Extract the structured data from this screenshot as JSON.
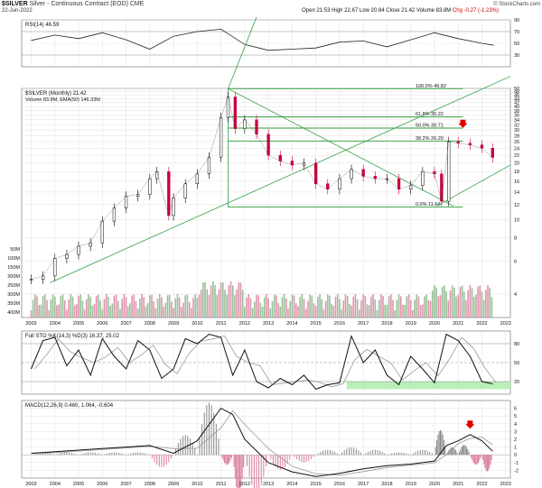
{
  "header": {
    "symbol": "$SILVER",
    "description": "Silver - Continuous Contract (EOD) CME",
    "date": "22-Jun-2022",
    "ohlc": {
      "open": "Open 21.53",
      "high": "High 22.67",
      "low": "Low 20.84",
      "close": "Close 21.42",
      "volume": "Volume 83.8M",
      "change": "Chg -0.27 (-1.23%)"
    },
    "copyright": "© StockCharts.com"
  },
  "colors": {
    "up": "#000000",
    "down": "#c8003c",
    "trend": "#2e9b3c",
    "volume": "#7fb07f",
    "vol_down": "#d87a9a",
    "grid": "#d9d9d9",
    "highlight": "#b8f0b8",
    "arrow": "#e00000"
  },
  "chart_data": [
    {
      "type": "line",
      "name": "rsi",
      "label": "RSI(14) 46.59",
      "x": [
        2003,
        2004,
        2005,
        2006,
        2007,
        2008,
        2009,
        2010,
        2011,
        2012,
        2013,
        2014,
        2015,
        2016,
        2017,
        2018,
        2019,
        2020,
        2021,
        2022,
        2022.5
      ],
      "values": [
        55,
        64,
        58,
        68,
        56,
        40,
        62,
        70,
        74,
        48,
        38,
        40,
        42,
        52,
        54,
        44,
        56,
        68,
        58,
        50,
        46.59
      ],
      "yticks": [
        30,
        50,
        70,
        90
      ],
      "ylim": [
        10,
        90
      ]
    },
    {
      "type": "candlestick",
      "name": "price",
      "label": "$SILVER (Monthly) 21.42",
      "sublabel": "Volume 83.8M, EMA(50) 146.33M",
      "x": [
        2003,
        2003.5,
        2004,
        2004.5,
        2005,
        2005.5,
        2006,
        2006.5,
        2007,
        2007.5,
        2008,
        2008.3,
        2008.8,
        2009,
        2009.5,
        2010,
        2010.5,
        2011,
        2011.3,
        2011.6,
        2012,
        2012.5,
        2013,
        2013.5,
        2014,
        2014.5,
        2015,
        2015.5,
        2016,
        2016.5,
        2017,
        2017.5,
        2018,
        2018.5,
        2019,
        2019.5,
        2020,
        2020.3,
        2020.6,
        2021,
        2021.5,
        2022,
        2022.45
      ],
      "close": [
        4.8,
        5.0,
        6.2,
        6.5,
        7.2,
        7.5,
        9.8,
        11.5,
        13.3,
        13.6,
        16.5,
        18.0,
        10.5,
        13.0,
        15.5,
        17.5,
        21.5,
        35.0,
        45.0,
        30.5,
        34.0,
        28.5,
        22.0,
        20.5,
        19.5,
        20.0,
        15.5,
        14.5,
        16.5,
        18.5,
        17.0,
        16.5,
        16.5,
        14.5,
        15.2,
        18.0,
        17.5,
        12.5,
        26.0,
        25.5,
        25.0,
        24.0,
        21.42
      ],
      "yticks": [
        4,
        6,
        8,
        10,
        12,
        14,
        16,
        18,
        20,
        22,
        24,
        26,
        28,
        30,
        32,
        34,
        36,
        38,
        40,
        42,
        44,
        46,
        48,
        50
      ],
      "ylim": [
        3,
        50
      ],
      "volume_ticks": [
        "400M",
        "350M",
        "300M",
        "250M",
        "200M",
        "150M",
        "100M",
        "50M"
      ],
      "fib_labels": [
        "100.0% 49.82",
        "61.8% 35.22",
        "50.0% 30.71",
        "38.2% 26.20",
        "0.0% 11.64"
      ],
      "fib_levels": [
        49.82,
        35.22,
        30.71,
        26.2,
        11.64
      ]
    },
    {
      "type": "line",
      "name": "stochastic",
      "label": "Full STO %K(14,3) %D(3) 16.37, 25.02",
      "x": [
        2003,
        2003.5,
        2004,
        2004.5,
        2005,
        2005.5,
        2006,
        2006.5,
        2007,
        2007.5,
        2008,
        2008.5,
        2009,
        2009.5,
        2010,
        2010.5,
        2011,
        2011.5,
        2012,
        2012.5,
        2013,
        2013.5,
        2014,
        2014.5,
        2015,
        2015.5,
        2016,
        2016.5,
        2017,
        2017.5,
        2018,
        2018.5,
        2019,
        2019.5,
        2020,
        2020.5,
        2021,
        2021.5,
        2022,
        2022.45
      ],
      "values": [
        40,
        85,
        90,
        45,
        70,
        30,
        88,
        60,
        40,
        85,
        70,
        25,
        40,
        88,
        80,
        95,
        90,
        30,
        70,
        20,
        10,
        25,
        15,
        30,
        8,
        15,
        18,
        92,
        50,
        70,
        30,
        15,
        60,
        40,
        18,
        95,
        85,
        60,
        20,
        16.37
      ],
      "yticks": [
        20,
        50,
        80
      ],
      "ylim": [
        0,
        100
      ]
    },
    {
      "type": "line",
      "name": "macd",
      "label": "MACD(12,26,9) 0.460, 1.064, -0.604",
      "x": [
        2003,
        2004,
        2005,
        2006,
        2007,
        2008,
        2009,
        2010,
        2011,
        2011.5,
        2012,
        2013,
        2014,
        2015,
        2016,
        2017,
        2018,
        2019,
        2020,
        2020.5,
        2021,
        2021.5,
        2022,
        2022.45
      ],
      "values": [
        0.2,
        0.4,
        0.6,
        0.8,
        1.0,
        1.2,
        0.2,
        1.8,
        6.0,
        5.2,
        2.0,
        -1.0,
        -2.2,
        -2.8,
        -2.4,
        -1.8,
        -1.4,
        -1.2,
        -0.8,
        1.2,
        1.8,
        2.6,
        1.8,
        0.46
      ],
      "yticks": [
        -2,
        -1,
        0,
        1,
        2,
        3,
        4,
        5,
        6
      ],
      "ylim": [
        -3,
        7
      ]
    }
  ],
  "x_axis": {
    "years": [
      "2003",
      "2004",
      "2005",
      "2006",
      "2007",
      "2008",
      "2009",
      "2010",
      "2011",
      "2012",
      "2013",
      "2014",
      "2015",
      "2016",
      "2017",
      "2018",
      "2019",
      "2020",
      "2021",
      "2022",
      "2023"
    ]
  },
  "icons": {
    "annotation": "red-down-arrow-icon"
  }
}
